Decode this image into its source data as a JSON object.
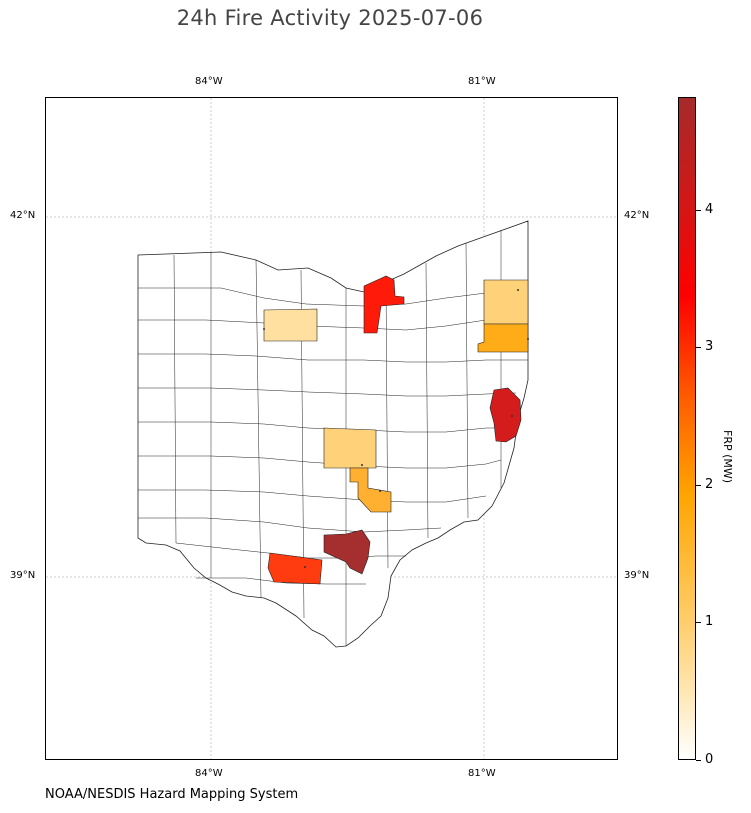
{
  "title": "24h Fire Activity 2025-07-06",
  "credit": "NOAA/NESDIS Hazard Mapping System",
  "map": {
    "lon_labels": [
      "84°W",
      "81°W"
    ],
    "lat_labels": [
      "42°N",
      "39°N"
    ],
    "region": "Ohio counties",
    "highlighted_counties": [
      {
        "frp_mw": 0.7,
        "color": "#ffe0a0"
      },
      {
        "frp_mw": 3.3,
        "color": "#ff1a0a"
      },
      {
        "frp_mw": 0.9,
        "color": "#ffd27a"
      },
      {
        "frp_mw": 1.3,
        "color": "#ffac18"
      },
      {
        "frp_mw": 3.9,
        "color": "#d41c1c"
      },
      {
        "frp_mw": 0.9,
        "color": "#ffd27a"
      },
      {
        "frp_mw": 1.3,
        "color": "#ffb030"
      },
      {
        "frp_mw": 4.5,
        "color": "#a52f2f"
      },
      {
        "frp_mw": 3.0,
        "color": "#ff3c10"
      }
    ]
  },
  "colorbar": {
    "label": "FRP (MW)",
    "ticks": [
      "0",
      "1",
      "2",
      "3",
      "4"
    ],
    "min": 0,
    "max": 4.8,
    "colormap": [
      "#ffffff",
      "#ffe2a6",
      "#ffcb64",
      "#ffa500",
      "#ff5a00",
      "#ff0000",
      "#d01818",
      "#a52a2a"
    ]
  }
}
